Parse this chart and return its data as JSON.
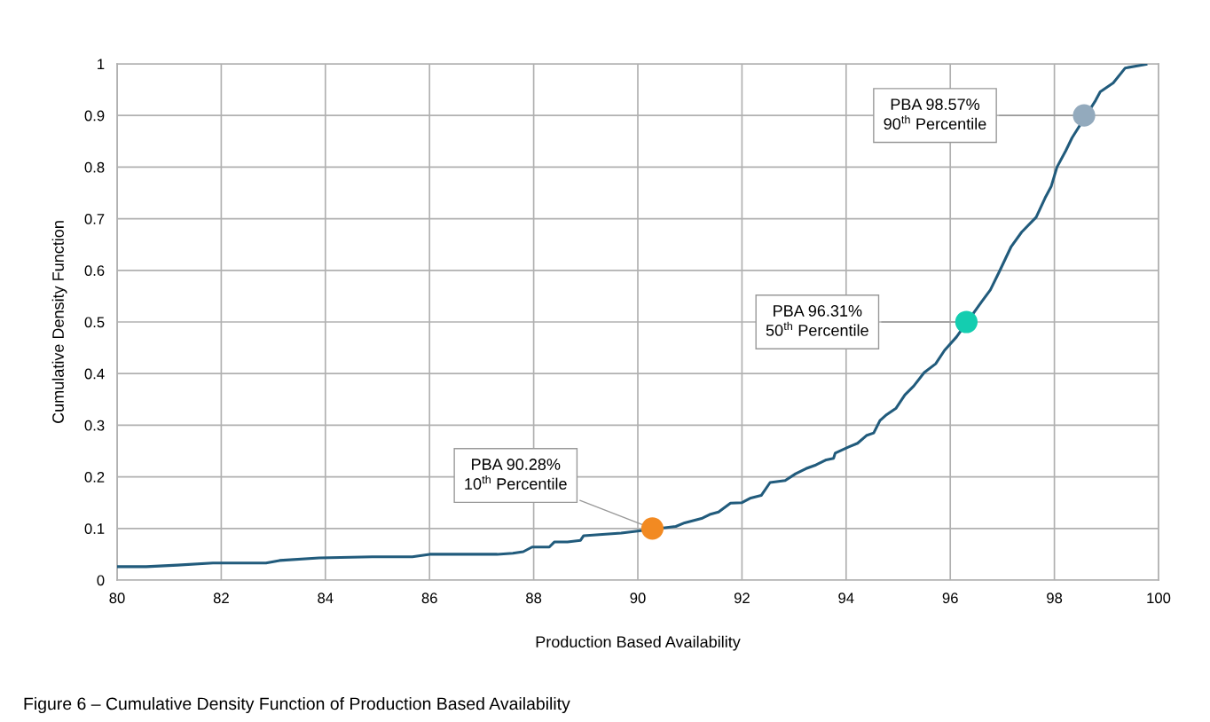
{
  "chart_data": {
    "type": "line",
    "xlabel": "Production Based Availability",
    "ylabel": "Cumulative Density Function",
    "xlim": [
      80,
      100
    ],
    "xticks": [
      80,
      82,
      84,
      86,
      88,
      90,
      92,
      94,
      96,
      98,
      100
    ],
    "ylim": [
      0,
      1
    ],
    "yticks": [
      0,
      0.1,
      0.2,
      0.3,
      0.4,
      0.5,
      0.6,
      0.7,
      0.8,
      0.9,
      1
    ],
    "grid": true,
    "legend": false,
    "series": [
      {
        "color": "#215b7c",
        "marker": "none",
        "x": [
          80,
          80.56,
          81.16,
          81.84,
          82.86,
          83.12,
          83.88,
          84.9,
          85.67,
          86.0,
          87.3,
          87.6,
          87.8,
          87.97,
          88.3,
          88.4,
          88.65,
          88.9,
          88.96,
          89.68,
          90.73,
          90.9,
          91.24,
          91.38,
          91.55,
          91.78,
          92.0,
          92.17,
          92.37,
          92.54,
          92.83,
          93.03,
          93.23,
          93.42,
          93.62,
          93.76,
          93.79,
          94.05,
          94.22,
          94.39,
          94.53,
          94.65,
          94.76,
          94.96,
          95.13,
          95.3,
          95.5,
          95.72,
          95.89,
          96.12,
          96.6,
          96.77,
          96.94,
          97.17,
          97.37,
          97.65,
          97.82,
          97.94,
          98.05,
          98.22,
          98.34,
          98.79,
          98.88,
          99.13,
          99.36,
          99.76
        ],
        "values": [
          0.026,
          0.026,
          0.029,
          0.033,
          0.033,
          0.038,
          0.043,
          0.045,
          0.045,
          0.05,
          0.05,
          0.052,
          0.055,
          0.064,
          0.064,
          0.074,
          0.074,
          0.077,
          0.086,
          0.091,
          0.104,
          0.111,
          0.12,
          0.127,
          0.132,
          0.149,
          0.15,
          0.159,
          0.164,
          0.189,
          0.193,
          0.206,
          0.216,
          0.223,
          0.233,
          0.236,
          0.246,
          0.258,
          0.265,
          0.28,
          0.285,
          0.309,
          0.319,
          0.333,
          0.359,
          0.376,
          0.402,
          0.419,
          0.445,
          0.471,
          0.539,
          0.562,
          0.597,
          0.646,
          0.674,
          0.703,
          0.74,
          0.763,
          0.8,
          0.832,
          0.857,
          0.929,
          0.946,
          0.963,
          0.992,
          0.999
        ]
      },
      {
        "type": "scatter",
        "marker": "circle",
        "x": [
          90.28,
          96.31,
          98.57
        ],
        "values": [
          0.1,
          0.5,
          0.9
        ],
        "colors": [
          "#f28a22",
          "#14cdb0",
          "#93aabd"
        ]
      }
    ],
    "annotations": [
      {
        "text": "PBA 90.28%\n10$^{th}$ Percentile",
        "x": 90.28,
        "y": 0.1
      },
      {
        "text": "PBA 96.31%\n50$^{th}$ Percentile",
        "x": 96.31,
        "y": 0.5
      },
      {
        "text": "PBA 98.57%\n90$^{th}$ Percentile",
        "x": 98.57,
        "y": 0.9
      },
      "Figure 6 – Cumulative Density Function of Production Based Availability"
    ]
  }
}
